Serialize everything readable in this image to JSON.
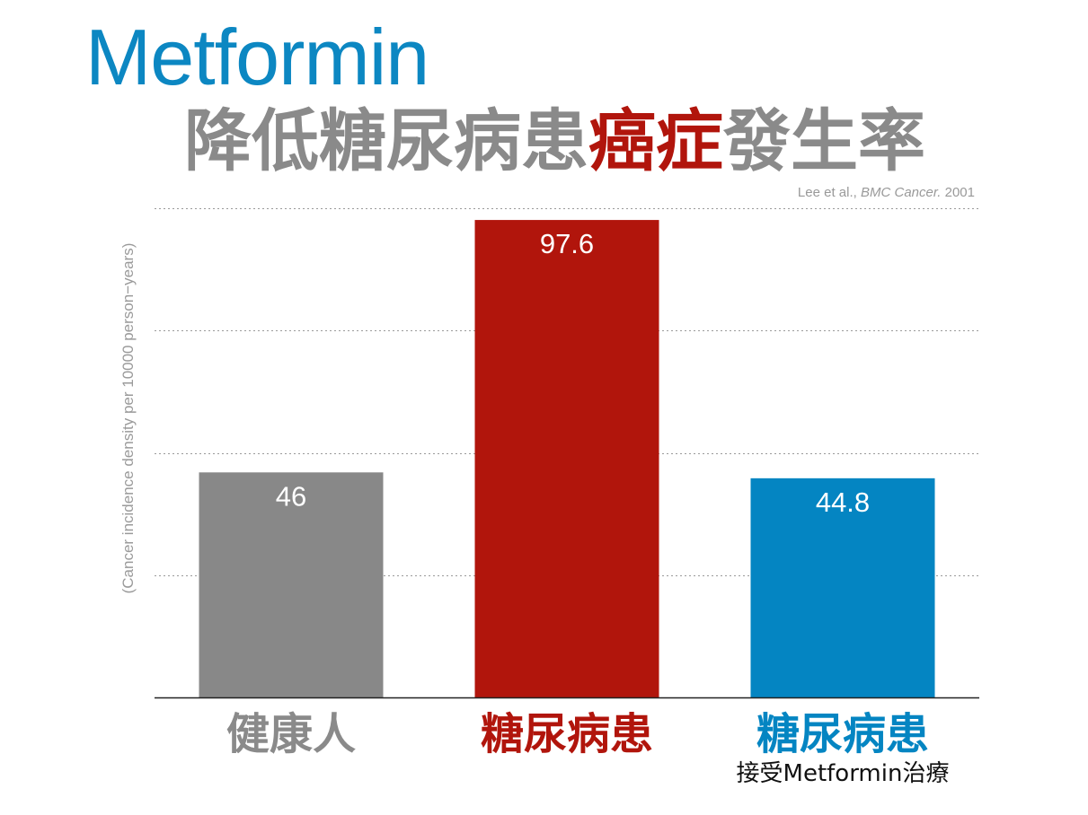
{
  "header": {
    "title": "Metformin",
    "subtitle_parts": [
      {
        "text": "降低糖尿病患",
        "color": "#8a8a8a"
      },
      {
        "text": "癌症",
        "color": "#b1150c"
      },
      {
        "text": "發生率",
        "color": "#8a8a8a"
      }
    ]
  },
  "citation": {
    "authors": "Lee et al., ",
    "journal": "BMC Cancer.",
    "year": " 2001"
  },
  "chart_data": {
    "type": "bar",
    "ylabel": "(Cancer incidence density per 10000 person−years)",
    "ylim": [
      0,
      100
    ],
    "grid": true,
    "categories": [
      "健康人",
      "糖尿病患",
      "糖尿病患"
    ],
    "category_notes": [
      "",
      "",
      "接受Metformin治療"
    ],
    "values": [
      46,
      97.6,
      44.8
    ],
    "value_labels": [
      "46",
      "97.6",
      "44.8"
    ],
    "colors": [
      "#888888",
      "#b1150c",
      "#0485c2"
    ]
  }
}
